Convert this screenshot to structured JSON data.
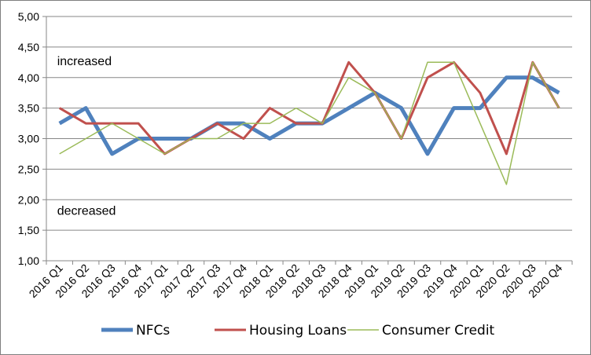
{
  "chart_data": {
    "type": "line",
    "title": "",
    "xlabel": "",
    "ylabel": "",
    "ylim": [
      1.0,
      5.0
    ],
    "yticks": [
      "1,00",
      "1,50",
      "2,00",
      "2,50",
      "3,00",
      "3,50",
      "4,00",
      "4,50",
      "5,00"
    ],
    "categories": [
      "2016 Q1",
      "2016 Q2",
      "2016 Q3",
      "2016 Q4",
      "2017 Q1",
      "2017 Q2",
      "2017 Q3",
      "2017 Q4",
      "2018 Q1",
      "2018 Q2",
      "2018 Q3",
      "2018 Q4",
      "2019 Q1",
      "2019 Q2",
      "2019 Q3",
      "2019 Q4",
      "2020 Q1",
      "2020 Q2",
      "2020 Q3",
      "2020 Q4"
    ],
    "grid": "horizontal",
    "legend_position": "bottom",
    "annotations": [
      {
        "text": "increased",
        "x": "2016 Q1",
        "y": 4.2
      },
      {
        "text": "decreased",
        "x": "2016 Q1",
        "y": 1.75
      }
    ],
    "series": [
      {
        "name": "NFCs",
        "color": "#4f81bd",
        "values": [
          3.25,
          3.5,
          2.75,
          3.0,
          3.0,
          3.0,
          3.25,
          3.25,
          3.0,
          3.25,
          3.25,
          3.5,
          3.75,
          3.5,
          2.75,
          3.5,
          3.5,
          4.0,
          4.0,
          3.75
        ]
      },
      {
        "name": "Housing Loans",
        "color": "#c0504d",
        "values": [
          3.5,
          3.25,
          3.25,
          3.25,
          2.75,
          3.0,
          3.25,
          3.0,
          3.5,
          3.25,
          3.25,
          4.25,
          3.75,
          3.0,
          4.0,
          4.25,
          3.75,
          2.75,
          4.25,
          3.5
        ]
      },
      {
        "name": "Consumer Credit",
        "color": "#9bbb59",
        "values": [
          2.75,
          3.0,
          3.25,
          3.0,
          2.75,
          3.0,
          3.0,
          3.25,
          3.25,
          3.5,
          3.25,
          4.0,
          3.75,
          3.0,
          4.25,
          4.25,
          3.25,
          2.25,
          4.25,
          3.5
        ]
      }
    ]
  }
}
